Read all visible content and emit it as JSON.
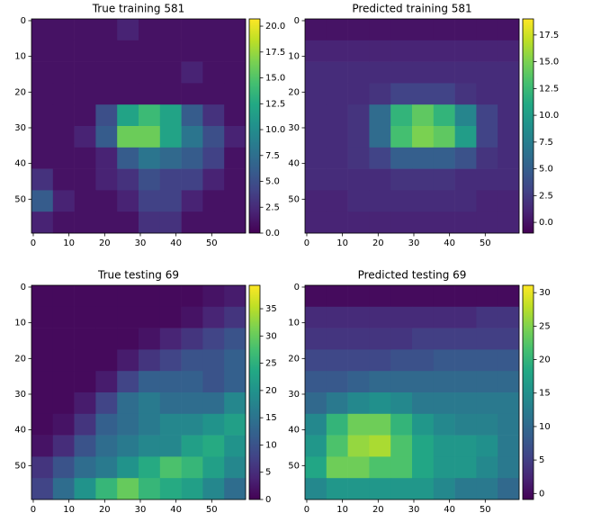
{
  "chart_data": [
    {
      "type": "heatmap",
      "title": "True training 581",
      "colormap": "viridis",
      "xlim": [
        -0.5,
        59.5
      ],
      "ylim": [
        59.5,
        -0.5
      ],
      "xticks": [
        0,
        10,
        20,
        30,
        40,
        50
      ],
      "yticks": [
        0,
        10,
        20,
        30,
        40,
        50
      ],
      "clim": [
        0,
        20.7
      ],
      "cticks": [
        {
          "value": 0,
          "label": "0.0"
        },
        {
          "value": 2.5,
          "label": "2.5"
        },
        {
          "value": 5,
          "label": "5.0"
        },
        {
          "value": 7.5,
          "label": "7.5"
        },
        {
          "value": 10,
          "label": "10.0"
        },
        {
          "value": 12.5,
          "label": "12.5"
        },
        {
          "value": 15,
          "label": "15.0"
        },
        {
          "value": 17.5,
          "label": "17.5"
        },
        {
          "value": 20,
          "label": "20.0"
        }
      ],
      "z": [
        [
          1,
          1,
          1,
          1,
          2,
          1,
          1,
          1,
          1,
          1
        ],
        [
          1,
          1,
          1,
          1,
          1,
          1,
          1,
          1,
          1,
          1
        ],
        [
          1,
          1,
          1,
          1,
          1,
          1,
          1,
          2,
          1,
          1
        ],
        [
          1,
          1,
          1,
          1,
          1,
          1,
          1,
          1,
          1,
          1
        ],
        [
          1,
          1,
          1,
          5,
          12,
          14,
          12,
          6,
          3,
          1
        ],
        [
          1,
          1,
          2,
          6,
          16,
          16,
          12,
          8,
          5,
          2
        ],
        [
          1,
          1,
          1,
          2,
          6,
          8,
          7,
          6,
          4,
          1
        ],
        [
          3,
          1,
          1,
          2,
          3,
          5,
          4,
          4,
          2,
          1
        ],
        [
          6,
          2,
          1,
          1,
          2,
          4,
          4,
          2,
          1,
          1
        ],
        [
          2,
          1,
          1,
          1,
          1,
          3,
          3,
          1,
          1,
          1
        ]
      ]
    },
    {
      "type": "heatmap",
      "title": "Predicted training 581",
      "colormap": "viridis",
      "xlim": [
        -0.5,
        59.5
      ],
      "ylim": [
        59.5,
        -0.5
      ],
      "xticks": [
        0,
        10,
        20,
        30,
        40,
        50
      ],
      "yticks": [
        0,
        10,
        20,
        30,
        40,
        50
      ],
      "clim": [
        -1.0,
        19.0
      ],
      "cticks": [
        {
          "value": 0,
          "label": "0.0"
        },
        {
          "value": 2.5,
          "label": "2.5"
        },
        {
          "value": 5,
          "label": "5.0"
        },
        {
          "value": 7.5,
          "label": "7.5"
        },
        {
          "value": 10,
          "label": "10.0"
        },
        {
          "value": 12.5,
          "label": "12.5"
        },
        {
          "value": 15,
          "label": "15.0"
        },
        {
          "value": 17.5,
          "label": "17.5"
        }
      ],
      "z": [
        [
          0,
          0,
          0,
          0,
          0,
          0,
          0,
          0,
          0,
          0
        ],
        [
          1,
          1,
          1,
          1,
          1,
          1,
          1,
          1,
          1,
          1
        ],
        [
          1.5,
          1.5,
          1.5,
          1.5,
          1.5,
          1.5,
          1.5,
          1.5,
          1.5,
          1.5
        ],
        [
          1.5,
          1.5,
          1.5,
          2,
          3,
          3,
          3,
          2,
          1.5,
          1.5
        ],
        [
          1.5,
          1.5,
          2,
          6,
          12,
          14,
          12,
          8,
          3,
          1.5
        ],
        [
          1.5,
          1.5,
          2,
          6,
          13,
          15,
          14,
          10,
          3,
          1.5
        ],
        [
          1.5,
          1.5,
          2,
          3,
          5,
          5,
          5,
          4,
          2,
          1.5
        ],
        [
          1.5,
          1.5,
          1.5,
          1.5,
          2,
          2,
          2,
          1.5,
          1.5,
          1.5
        ],
        [
          1,
          1,
          1.5,
          1.5,
          1.5,
          1.5,
          1.5,
          1.5,
          1,
          1
        ],
        [
          1,
          1,
          1,
          1,
          1,
          1,
          1,
          1,
          1,
          1
        ]
      ]
    },
    {
      "type": "heatmap",
      "title": "True testing 69",
      "colormap": "viridis",
      "xlim": [
        -0.5,
        59.5
      ],
      "ylim": [
        59.5,
        -0.5
      ],
      "xticks": [
        0,
        10,
        20,
        30,
        40,
        50
      ],
      "yticks": [
        0,
        10,
        20,
        30,
        40,
        50
      ],
      "clim": [
        0,
        39.3
      ],
      "cticks": [
        0,
        5,
        10,
        15,
        20,
        25,
        30,
        35
      ],
      "z": [
        [
          1,
          1,
          1,
          1,
          1,
          1,
          1,
          1,
          2,
          3
        ],
        [
          1,
          1,
          1,
          1,
          1,
          1,
          1,
          2,
          4,
          6
        ],
        [
          1,
          1,
          1,
          1,
          1,
          2,
          4,
          6,
          8,
          10
        ],
        [
          1,
          1,
          1,
          1,
          3,
          6,
          8,
          10,
          10,
          12
        ],
        [
          1,
          1,
          1,
          3,
          8,
          12,
          12,
          12,
          10,
          12
        ],
        [
          1,
          1,
          3,
          8,
          14,
          16,
          14,
          14,
          14,
          18
        ],
        [
          1,
          2,
          6,
          12,
          14,
          16,
          18,
          18,
          20,
          22
        ],
        [
          2,
          5,
          10,
          14,
          16,
          18,
          18,
          22,
          24,
          20
        ],
        [
          6,
          10,
          14,
          16,
          20,
          24,
          28,
          26,
          22,
          18
        ],
        [
          8,
          14,
          20,
          26,
          30,
          26,
          24,
          22,
          18,
          14
        ]
      ]
    },
    {
      "type": "heatmap",
      "title": "Predicted testing 69",
      "colormap": "viridis",
      "xlim": [
        -0.5,
        59.5
      ],
      "ylim": [
        59.5,
        -0.5
      ],
      "xticks": [
        0,
        10,
        20,
        30,
        40,
        50
      ],
      "yticks": [
        0,
        10,
        20,
        30,
        40,
        50
      ],
      "clim": [
        -0.9,
        31.1
      ],
      "cticks": [
        0,
        5,
        10,
        15,
        20,
        25,
        30
      ],
      "z": [
        [
          0,
          0,
          0,
          0,
          0,
          0,
          0,
          0,
          0,
          0
        ],
        [
          3,
          3,
          3,
          3,
          3,
          3,
          3,
          3,
          4,
          4
        ],
        [
          4,
          4,
          4,
          4,
          4,
          5,
          5,
          5,
          5,
          5
        ],
        [
          6,
          6,
          6,
          6,
          7,
          7,
          8,
          8,
          8,
          8
        ],
        [
          8,
          8,
          9,
          10,
          10,
          10,
          10,
          10,
          10,
          10
        ],
        [
          10,
          12,
          14,
          15,
          14,
          12,
          12,
          12,
          12,
          12
        ],
        [
          14,
          20,
          24,
          24,
          20,
          16,
          14,
          13,
          13,
          12
        ],
        [
          16,
          22,
          26,
          27,
          22,
          18,
          16,
          16,
          15,
          12
        ],
        [
          18,
          24,
          24,
          22,
          22,
          18,
          16,
          16,
          14,
          12
        ],
        [
          14,
          16,
          16,
          16,
          16,
          16,
          14,
          12,
          12,
          10
        ]
      ]
    }
  ]
}
